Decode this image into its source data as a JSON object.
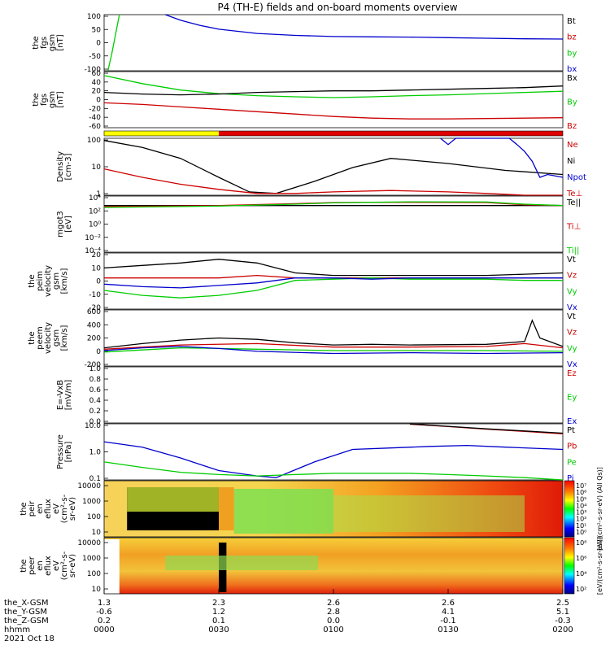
{
  "title": "P4 (TH-E) fields and on-board moments overview",
  "colors": {
    "black": "#000000",
    "red": "#cc0000",
    "green": "#00cc00",
    "blue": "#0000cc",
    "yellow": "#ffff00",
    "barRed": "#e00000"
  },
  "chart_data": [
    {
      "type": "line",
      "id": "fgs_gsm_a",
      "ylabel": [
        "the",
        "fgs",
        "gsm",
        "[nT]"
      ],
      "ylim": [
        -100,
        100
      ],
      "yticks": [
        "100",
        "50",
        "0",
        "-50",
        "-100"
      ],
      "legend": [
        {
          "name": "Bt",
          "color": "#000000"
        },
        {
          "name": "bz",
          "color": "#cc0000"
        },
        {
          "name": "by",
          "color": "#00cc00"
        },
        {
          "name": "bx",
          "color": "#0000cc"
        }
      ],
      "series": [
        {
          "name": "bx",
          "color": "#0000cc",
          "x": [
            16,
            20,
            25,
            30,
            40,
            50,
            60,
            70,
            80,
            90,
            100,
            110,
            120
          ],
          "y": [
            100,
            80,
            62,
            48,
            33,
            26,
            22,
            21,
            20,
            18,
            16,
            14,
            13
          ]
        },
        {
          "name": "by",
          "color": "#00cc00",
          "x": [
            1,
            2,
            3,
            4
          ],
          "y": [
            -100,
            -40,
            30,
            100
          ]
        }
      ]
    },
    {
      "type": "line",
      "id": "fgs_gsm_b",
      "ylabel": [
        "the",
        "fgs",
        "gsm",
        "[nT]"
      ],
      "ylim": [
        -80,
        60
      ],
      "yticks": [
        "60",
        "40",
        "20",
        "0",
        "-20",
        "-40",
        "-60"
      ],
      "legend": [
        {
          "name": "Bx",
          "color": "#000000"
        },
        {
          "name": "By",
          "color": "#00cc00"
        },
        {
          "name": "Bz",
          "color": "#cc0000"
        }
      ],
      "series": [
        {
          "name": "By",
          "color": "#00cc00",
          "x": [
            0,
            10,
            20,
            30,
            40,
            50,
            60,
            70,
            80,
            90,
            100,
            110,
            120
          ],
          "y": [
            50,
            30,
            14,
            5,
            0,
            -3,
            -5,
            -3,
            0,
            2,
            5,
            8,
            11
          ]
        },
        {
          "name": "Bx",
          "color": "#000000",
          "x": [
            0,
            10,
            20,
            30,
            40,
            50,
            60,
            70,
            80,
            90,
            100,
            110,
            120
          ],
          "y": [
            8,
            4,
            2,
            4,
            8,
            10,
            12,
            12,
            14,
            16,
            18,
            20,
            24
          ]
        },
        {
          "name": "Bz",
          "color": "#cc0000",
          "x": [
            0,
            10,
            20,
            30,
            40,
            50,
            60,
            70,
            80,
            90,
            100,
            110,
            120
          ],
          "y": [
            -18,
            -22,
            -28,
            -34,
            -40,
            -46,
            -52,
            -56,
            -58,
            -58,
            -57,
            -56,
            -55
          ]
        }
      ]
    },
    {
      "type": "line",
      "id": "density",
      "log": true,
      "ylabel": [
        "Density",
        "[cm-3]"
      ],
      "ylim": [
        0.5,
        150
      ],
      "yticks": [
        "100",
        "10",
        "1"
      ],
      "legend": [
        {
          "name": "Ne",
          "color": "#cc0000"
        },
        {
          "name": "Ni",
          "color": "#000000"
        },
        {
          "name": "Npot",
          "color": "#0000cc"
        },
        {
          "name": "Te⊥",
          "color": "#cc0000"
        }
      ],
      "series": [
        {
          "name": "Ni",
          "color": "#000000",
          "x": [
            0,
            10,
            20,
            30,
            38,
            45,
            55,
            65,
            75,
            90,
            105,
            120
          ],
          "y": [
            120,
            60,
            20,
            3,
            0.7,
            0.6,
            2,
            8,
            20,
            12,
            6,
            4
          ]
        },
        {
          "name": "Ne",
          "color": "#cc0000",
          "x": [
            0,
            10,
            20,
            30,
            40,
            50,
            60,
            75,
            90,
            100,
            110,
            120
          ],
          "y": [
            7,
            3,
            1.5,
            0.9,
            0.6,
            0.6,
            0.7,
            0.8,
            0.7,
            0.6,
            0.5,
            0.5
          ]
        },
        {
          "name": "Npot",
          "color": "#0000cc",
          "x": [
            88,
            90,
            92,
            106,
            108,
            110,
            112,
            114,
            116,
            120
          ],
          "y": [
            150,
            80,
            150,
            150,
            80,
            40,
            15,
            3,
            4,
            3
          ]
        }
      ]
    },
    {
      "type": "line",
      "id": "mgot3",
      "log": true,
      "ylabel": [
        "mgot3",
        "[eV]"
      ],
      "ylim": [
        1e-05,
        10000
      ],
      "yticks": [
        "10⁴",
        "10²",
        "10⁰",
        "10⁻²",
        "10⁻⁴"
      ],
      "legend": [
        {
          "name": "Te||",
          "color": "#000000"
        },
        {
          "name": "Ti⊥",
          "color": "#cc0000"
        },
        {
          "name": "Ti||",
          "color": "#00cc00"
        }
      ],
      "series": [
        {
          "name": "Te||",
          "color": "#000000",
          "x": [
            0,
            120
          ],
          "y": [
            300,
            300
          ]
        },
        {
          "name": "Ti⊥",
          "color": "#cc0000",
          "x": [
            0,
            30,
            50,
            60,
            70,
            80,
            100,
            110,
            120
          ],
          "y": [
            200,
            300,
            600,
            900,
            1000,
            1000,
            900,
            400,
            300
          ]
        },
        {
          "name": "Ti||",
          "color": "#00cc00",
          "x": [
            0,
            30,
            50,
            60,
            70,
            80,
            100,
            110,
            120
          ],
          "y": [
            150,
            250,
            500,
            800,
            1000,
            1200,
            1100,
            500,
            300
          ]
        }
      ]
    },
    {
      "type": "line",
      "id": "peim_velocity_a",
      "ylabel": [
        "the",
        "peim",
        "velocity",
        "gsm",
        "[km/s]"
      ],
      "ylim": [
        -25,
        20
      ],
      "yticks": [
        "20",
        "10",
        "0",
        "-10",
        "-20"
      ],
      "legend": [
        {
          "name": "Vt",
          "color": "#000000"
        },
        {
          "name": "Vz",
          "color": "#cc0000"
        },
        {
          "name": "Vy",
          "color": "#00cc00"
        },
        {
          "name": "Vx",
          "color": "#0000cc"
        }
      ],
      "series": [
        {
          "name": "Vt",
          "color": "#000000",
          "x": [
            0,
            10,
            20,
            30,
            40,
            50,
            60,
            70,
            80,
            90,
            100,
            110,
            120
          ],
          "y": [
            8,
            10,
            12,
            15,
            12,
            4,
            2,
            2,
            2,
            2,
            2,
            3,
            4
          ]
        },
        {
          "name": "Vz",
          "color": "#cc0000",
          "x": [
            0,
            10,
            20,
            30,
            40,
            50,
            60,
            70,
            80,
            90,
            100,
            110,
            120
          ],
          "y": [
            0,
            0,
            0,
            0,
            2,
            0,
            0,
            0,
            0,
            0,
            0,
            0,
            0
          ]
        },
        {
          "name": "Vy",
          "color": "#00cc00",
          "x": [
            0,
            10,
            20,
            30,
            40,
            50,
            60,
            70,
            80,
            90,
            100,
            110,
            120
          ],
          "y": [
            -10,
            -14,
            -16,
            -14,
            -10,
            -2,
            -1,
            0,
            -1,
            -1,
            -1,
            -2,
            -2
          ]
        },
        {
          "name": "Vx",
          "color": "#0000cc",
          "x": [
            0,
            10,
            20,
            30,
            40,
            50,
            60,
            70,
            80,
            90,
            100,
            110,
            120
          ],
          "y": [
            -5,
            -7,
            -8,
            -6,
            -4,
            0,
            0,
            -1,
            0,
            0,
            0,
            0,
            0
          ]
        }
      ]
    },
    {
      "type": "line",
      "id": "peem_velocity",
      "ylabel": [
        "the",
        "peem",
        "velocity",
        "gsm",
        "[km/s]"
      ],
      "ylim": [
        -200,
        600
      ],
      "yticks": [
        "600",
        "400",
        "200",
        "0",
        "-200"
      ],
      "legend": [
        {
          "name": "Vt",
          "color": "#000000"
        },
        {
          "name": "Vz",
          "color": "#cc0000"
        },
        {
          "name": "Vy",
          "color": "#00cc00"
        },
        {
          "name": "Vx",
          "color": "#0000cc"
        }
      ],
      "series": [
        {
          "name": "Vt",
          "color": "#000000",
          "x": [
            0,
            10,
            20,
            30,
            40,
            50,
            60,
            70,
            80,
            100,
            110,
            112,
            114,
            120
          ],
          "y": [
            60,
            120,
            170,
            200,
            180,
            130,
            100,
            110,
            100,
            110,
            150,
            450,
            200,
            80
          ]
        },
        {
          "name": "Vz",
          "color": "#cc0000",
          "x": [
            0,
            20,
            40,
            60,
            80,
            100,
            110,
            120
          ],
          "y": [
            40,
            100,
            120,
            70,
            70,
            80,
            120,
            60
          ]
        },
        {
          "name": "Vy",
          "color": "#00cc00",
          "x": [
            0,
            10,
            20,
            30,
            40,
            60,
            80,
            100,
            120
          ],
          "y": [
            0,
            30,
            60,
            50,
            40,
            20,
            20,
            20,
            10
          ]
        },
        {
          "name": "Vx",
          "color": "#0000cc",
          "x": [
            0,
            10,
            20,
            30,
            40,
            60,
            80,
            100,
            120
          ],
          "y": [
            20,
            60,
            80,
            50,
            10,
            -20,
            -10,
            -20,
            -10
          ]
        }
      ]
    },
    {
      "type": "line",
      "id": "efield",
      "ylabel": [
        "E=-VxB",
        "[mV/m]"
      ],
      "ylim": [
        0,
        1
      ],
      "yticks": [
        "1.0",
        "0.8",
        "0.6",
        "0.4",
        "0.2",
        "0.0"
      ],
      "legend": [
        {
          "name": "Ez",
          "color": "#cc0000"
        },
        {
          "name": "Ey",
          "color": "#00cc00"
        },
        {
          "name": "Ex",
          "color": "#0000cc"
        }
      ],
      "series": []
    },
    {
      "type": "line",
      "id": "pressure",
      "log": true,
      "ylabel": [
        "Pressure",
        "[nPa]"
      ],
      "ylim": [
        0.03,
        40
      ],
      "yticks": [
        "10.0",
        "1.0",
        "0.1"
      ],
      "legend": [
        {
          "name": "Pt",
          "color": "#000000"
        },
        {
          "name": "Pb",
          "color": "#cc0000"
        },
        {
          "name": "Pe",
          "color": "#00cc00"
        },
        {
          "name": "Pi",
          "color": "#0000cc"
        }
      ],
      "series": [
        {
          "name": "Pb",
          "color": "#cc0000",
          "x": [
            80,
            90,
            100,
            110,
            120
          ],
          "y": [
            38,
            28,
            20,
            15,
            11
          ]
        },
        {
          "name": "Pt",
          "color": "#000000",
          "x": [
            80,
            90,
            100,
            110,
            120
          ],
          "y": [
            39,
            29,
            21,
            16,
            12
          ]
        },
        {
          "name": "Pi",
          "color": "#0000cc",
          "x": [
            0,
            10,
            20,
            30,
            40,
            45,
            55,
            65,
            75,
            85,
            95,
            105,
            120
          ],
          "y": [
            4,
            2,
            0.5,
            0.1,
            0.05,
            0.04,
            0.3,
            1.5,
            1.8,
            2.2,
            2.5,
            2,
            1.5
          ]
        },
        {
          "name": "Pe",
          "color": "#00cc00",
          "x": [
            0,
            10,
            20,
            30,
            40,
            50,
            60,
            70,
            80,
            90,
            100,
            110,
            120
          ],
          "y": [
            0.3,
            0.15,
            0.08,
            0.06,
            0.05,
            0.06,
            0.07,
            0.07,
            0.07,
            0.06,
            0.05,
            0.04,
            0.03
          ]
        }
      ]
    },
    {
      "type": "heatmap",
      "id": "peir_eflux",
      "ylabel": [
        "the",
        "peir",
        "en",
        "eflux",
        "eV",
        "(cm²-s-",
        "sr-eV)"
      ],
      "yticks": [
        "10000",
        "1000",
        "100",
        "10"
      ],
      "colorbar_ticks": [
        "10⁷",
        "10⁶",
        "10⁵",
        "10⁴",
        "10³",
        "10²",
        "10¹",
        "10⁰"
      ],
      "colorbar_label": "[eV/(cm²-s-sr-eV) (All Qs)]"
    },
    {
      "type": "heatmap",
      "id": "peer_eflux",
      "ylabel": [
        "the",
        "peer",
        "en",
        "eflux",
        "eV",
        "(cm²-s-",
        "sr-eV)"
      ],
      "yticks": [
        "10000",
        "1000",
        "100",
        "10"
      ],
      "colorbar_ticks": [
        "10⁸",
        "10⁶",
        "10⁴",
        "10²"
      ],
      "colorbar_label": "[eV/(cm²-s-sr-eV)]"
    }
  ],
  "time_axis": {
    "row_labels": [
      "the_X-GSM",
      "the_Y-GSM",
      "the_Z-GSM",
      "hhmm",
      "2021 Oct 18"
    ],
    "ticks": [
      {
        "values": [
          "1.3",
          "-0.6",
          "0.2",
          "0000"
        ]
      },
      {
        "values": [
          "2.3",
          "1.2",
          "0.1",
          "0030"
        ]
      },
      {
        "values": [
          "2.6",
          "2.8",
          "0.0",
          "0100"
        ]
      },
      {
        "values": [
          "2.6",
          "4.1",
          "-0.1",
          "0130"
        ]
      },
      {
        "values": [
          "2.5",
          "5.1",
          "-0.3",
          "0200"
        ]
      }
    ]
  }
}
